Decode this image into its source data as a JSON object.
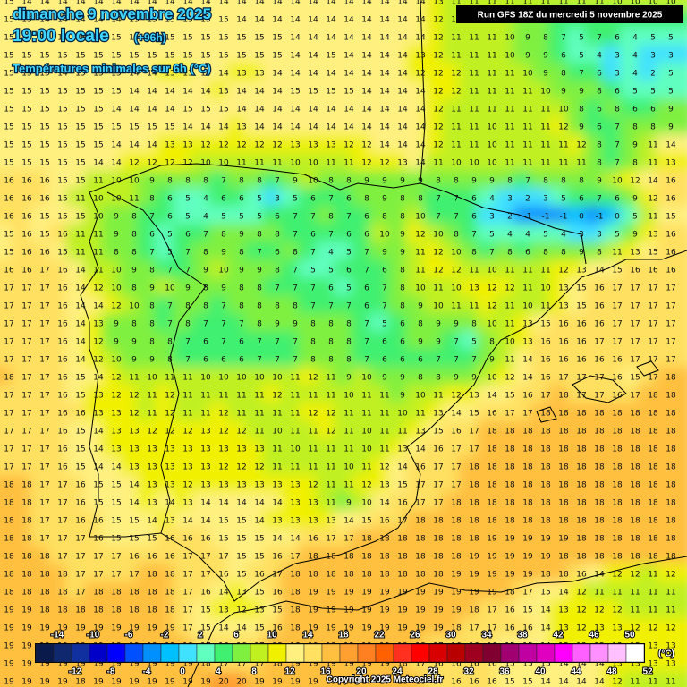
{
  "header": {
    "title": "dimanche 9 novembre 2025",
    "time": "19:00 locale",
    "lead": "(+96h)",
    "subtitle": "Températures minimales sur 6h (°C)",
    "run": "Run GFS 18Z du mercredi 5 novembre 2025"
  },
  "grid": {
    "rows": [
      [
        15,
        14,
        14,
        14,
        14,
        14,
        14,
        14,
        14,
        14,
        14,
        14,
        14,
        14,
        14,
        14,
        14,
        14,
        14,
        14,
        14,
        14,
        14,
        14,
        13,
        11,
        11,
        11,
        11,
        11,
        11,
        11,
        11,
        11,
        10,
        10,
        10,
        10
      ],
      [
        15,
        15,
        14,
        14,
        14,
        14,
        14,
        15,
        15,
        15,
        15,
        15,
        15,
        14,
        14,
        14,
        14,
        14,
        14,
        14,
        14,
        14,
        14,
        14,
        12,
        11,
        11,
        11,
        10,
        9,
        8,
        7,
        6,
        7,
        6,
        6,
        6,
        6
      ],
      [
        15,
        15,
        14,
        15,
        15,
        15,
        15,
        15,
        15,
        15,
        15,
        15,
        15,
        15,
        15,
        15,
        14,
        14,
        14,
        14,
        14,
        14,
        14,
        14,
        12,
        11,
        11,
        11,
        10,
        9,
        8,
        7,
        5,
        7,
        6,
        4,
        5,
        5
      ],
      [
        15,
        15,
        15,
        15,
        15,
        15,
        15,
        15,
        15,
        15,
        15,
        15,
        15,
        15,
        15,
        15,
        14,
        14,
        15,
        14,
        14,
        14,
        14,
        13,
        12,
        11,
        11,
        11,
        10,
        9,
        9,
        6,
        5,
        4,
        3,
        4,
        3,
        3
      ],
      [
        15,
        15,
        15,
        14,
        15,
        15,
        15,
        14,
        14,
        13,
        13,
        14,
        14,
        13,
        13,
        14,
        14,
        14,
        14,
        14,
        14,
        14,
        14,
        12,
        12,
        12,
        11,
        11,
        11,
        10,
        9,
        8,
        7,
        6,
        3,
        4,
        2,
        5
      ],
      [
        15,
        15,
        15,
        15,
        15,
        15,
        15,
        14,
        14,
        14,
        14,
        14,
        13,
        14,
        14,
        14,
        15,
        15,
        15,
        15,
        14,
        14,
        14,
        14,
        12,
        12,
        11,
        11,
        11,
        11,
        10,
        9,
        9,
        8,
        6,
        5,
        5,
        5
      ],
      [
        15,
        15,
        15,
        15,
        15,
        15,
        14,
        14,
        14,
        14,
        15,
        15,
        15,
        14,
        14,
        14,
        14,
        14,
        14,
        14,
        14,
        14,
        14,
        14,
        12,
        11,
        11,
        11,
        11,
        11,
        11,
        10,
        8,
        6,
        8,
        6,
        6,
        9
      ],
      [
        15,
        15,
        15,
        15,
        15,
        15,
        15,
        15,
        15,
        15,
        14,
        14,
        14,
        13,
        14,
        14,
        14,
        14,
        14,
        14,
        14,
        14,
        14,
        14,
        12,
        11,
        11,
        10,
        11,
        11,
        11,
        12,
        9,
        6,
        7,
        8,
        8,
        9
      ],
      [
        15,
        15,
        15,
        15,
        15,
        15,
        14,
        14,
        14,
        13,
        13,
        12,
        12,
        12,
        12,
        12,
        13,
        13,
        13,
        12,
        12,
        14,
        14,
        14,
        12,
        11,
        11,
        10,
        11,
        11,
        11,
        11,
        12,
        8,
        7,
        9,
        11,
        14
      ],
      [
        15,
        15,
        15,
        15,
        15,
        14,
        14,
        12,
        12,
        12,
        12,
        10,
        10,
        11,
        11,
        11,
        10,
        10,
        11,
        11,
        12,
        12,
        13,
        14,
        11,
        10,
        10,
        10,
        11,
        11,
        11,
        11,
        11,
        8,
        7,
        8,
        11,
        13
      ],
      [
        16,
        16,
        16,
        15,
        15,
        11,
        10,
        10,
        9,
        8,
        8,
        8,
        7,
        8,
        8,
        7,
        9,
        10,
        8,
        8,
        9,
        9,
        9,
        9,
        8,
        8,
        9,
        9,
        8,
        7,
        8,
        8,
        8,
        9,
        10,
        12,
        14,
        16
      ],
      [
        16,
        16,
        16,
        15,
        11,
        10,
        10,
        11,
        8,
        6,
        5,
        4,
        6,
        6,
        5,
        3,
        5,
        6,
        7,
        6,
        8,
        9,
        8,
        8,
        7,
        7,
        6,
        4,
        3,
        2,
        3,
        5,
        6,
        7,
        6,
        9,
        12,
        16
      ],
      [
        16,
        16,
        15,
        15,
        15,
        10,
        9,
        8,
        7,
        6,
        5,
        4,
        5,
        5,
        5,
        6,
        7,
        7,
        8,
        7,
        6,
        8,
        8,
        10,
        7,
        7,
        6,
        3,
        2,
        -1,
        -1,
        -1,
        0,
        -1,
        0,
        5,
        11,
        15
      ],
      [
        15,
        16,
        15,
        16,
        11,
        11,
        9,
        8,
        6,
        5,
        6,
        7,
        8,
        9,
        8,
        8,
        7,
        6,
        7,
        6,
        6,
        10,
        9,
        12,
        10,
        8,
        7,
        5,
        4,
        4,
        5,
        4,
        3,
        3,
        5,
        9,
        13,
        16
      ],
      [
        15,
        16,
        16,
        15,
        11,
        11,
        8,
        8,
        7,
        5,
        7,
        8,
        9,
        8,
        7,
        6,
        8,
        7,
        4,
        5,
        7,
        9,
        9,
        11,
        12,
        10,
        8,
        7,
        8,
        6,
        8,
        8,
        9,
        8,
        11,
        13,
        15,
        16
      ],
      [
        16,
        16,
        17,
        16,
        14,
        11,
        10,
        9,
        8,
        7,
        7,
        9,
        10,
        9,
        9,
        8,
        7,
        5,
        5,
        6,
        7,
        6,
        8,
        11,
        12,
        12,
        11,
        10,
        11,
        11,
        11,
        12,
        13,
        14,
        15,
        16,
        16,
        16
      ],
      [
        17,
        17,
        17,
        16,
        14,
        12,
        10,
        8,
        9,
        10,
        9,
        8,
        9,
        8,
        8,
        7,
        7,
        7,
        6,
        5,
        6,
        7,
        8,
        10,
        11,
        10,
        13,
        12,
        12,
        11,
        10,
        13,
        15,
        16,
        17,
        17,
        17,
        17
      ],
      [
        17,
        17,
        17,
        16,
        14,
        14,
        12,
        10,
        8,
        7,
        8,
        8,
        7,
        8,
        8,
        8,
        8,
        7,
        7,
        7,
        6,
        7,
        8,
        9,
        10,
        11,
        11,
        12,
        11,
        10,
        11,
        13,
        15,
        16,
        17,
        17,
        17,
        17
      ],
      [
        17,
        17,
        17,
        16,
        14,
        13,
        9,
        8,
        8,
        7,
        8,
        7,
        7,
        7,
        8,
        9,
        9,
        8,
        8,
        8,
        7,
        5,
        6,
        8,
        9,
        9,
        8,
        10,
        11,
        13,
        15,
        16,
        16,
        16,
        17,
        17,
        17,
        17
      ],
      [
        17,
        17,
        17,
        16,
        14,
        12,
        9,
        9,
        8,
        8,
        7,
        6,
        7,
        6,
        7,
        7,
        7,
        8,
        8,
        8,
        7,
        6,
        6,
        9,
        9,
        7,
        5,
        8,
        10,
        13,
        16,
        16,
        16,
        17,
        17,
        17,
        17,
        17
      ],
      [
        17,
        17,
        17,
        16,
        14,
        12,
        10,
        9,
        9,
        8,
        7,
        6,
        6,
        6,
        7,
        7,
        7,
        8,
        8,
        8,
        7,
        6,
        6,
        6,
        7,
        7,
        7,
        9,
        11,
        14,
        16,
        16,
        16,
        16,
        16,
        17,
        17,
        17
      ],
      [
        18,
        17,
        17,
        16,
        15,
        14,
        12,
        11,
        10,
        11,
        11,
        10,
        10,
        10,
        10,
        10,
        11,
        12,
        11,
        9,
        10,
        9,
        9,
        8,
        8,
        9,
        9,
        10,
        12,
        14,
        16,
        17,
        17,
        17,
        16,
        15,
        17,
        18
      ],
      [
        17,
        17,
        17,
        16,
        15,
        13,
        12,
        12,
        11,
        12,
        11,
        11,
        11,
        11,
        11,
        12,
        11,
        11,
        11,
        10,
        11,
        11,
        9,
        10,
        11,
        12,
        13,
        14,
        15,
        16,
        17,
        18,
        17,
        17,
        16,
        17,
        18,
        18
      ],
      [
        17,
        17,
        17,
        16,
        16,
        13,
        13,
        12,
        11,
        12,
        11,
        11,
        12,
        11,
        11,
        11,
        11,
        12,
        12,
        11,
        11,
        11,
        10,
        11,
        13,
        14,
        15,
        16,
        17,
        17,
        18,
        18,
        18,
        18,
        18,
        18,
        18,
        18
      ],
      [
        17,
        17,
        17,
        16,
        15,
        14,
        13,
        13,
        12,
        12,
        12,
        13,
        12,
        12,
        11,
        10,
        11,
        11,
        12,
        11,
        10,
        11,
        11,
        13,
        15,
        16,
        17,
        18,
        18,
        18,
        18,
        18,
        18,
        18,
        18,
        18,
        18,
        18
      ],
      [
        17,
        17,
        17,
        16,
        15,
        14,
        13,
        13,
        13,
        13,
        13,
        13,
        13,
        13,
        13,
        11,
        10,
        11,
        11,
        11,
        10,
        11,
        13,
        14,
        16,
        17,
        17,
        18,
        18,
        18,
        18,
        18,
        18,
        18,
        18,
        18,
        18,
        18
      ],
      [
        17,
        17,
        17,
        16,
        15,
        14,
        14,
        13,
        13,
        13,
        13,
        13,
        12,
        12,
        12,
        11,
        11,
        11,
        11,
        10,
        11,
        12,
        14,
        16,
        17,
        17,
        18,
        18,
        18,
        18,
        18,
        18,
        18,
        18,
        18,
        18,
        18,
        18
      ],
      [
        18,
        18,
        17,
        17,
        16,
        15,
        15,
        14,
        13,
        13,
        12,
        13,
        13,
        13,
        13,
        13,
        13,
        12,
        11,
        11,
        12,
        13,
        15,
        17,
        17,
        17,
        18,
        18,
        18,
        18,
        18,
        18,
        18,
        18,
        18,
        18,
        18,
        18
      ],
      [
        18,
        18,
        17,
        17,
        16,
        15,
        15,
        14,
        13,
        14,
        13,
        14,
        14,
        14,
        14,
        14,
        13,
        13,
        11,
        9,
        10,
        14,
        16,
        17,
        17,
        18,
        18,
        18,
        18,
        18,
        18,
        18,
        18,
        18,
        18,
        18,
        18,
        18
      ],
      [
        18,
        18,
        17,
        17,
        16,
        16,
        15,
        15,
        14,
        13,
        14,
        14,
        15,
        15,
        14,
        13,
        13,
        13,
        13,
        14,
        15,
        16,
        17,
        18,
        18,
        18,
        18,
        18,
        18,
        18,
        18,
        18,
        18,
        18,
        18,
        18,
        18,
        18
      ],
      [
        18,
        18,
        17,
        17,
        17,
        16,
        15,
        15,
        15,
        16,
        16,
        16,
        15,
        15,
        15,
        14,
        14,
        16,
        17,
        17,
        18,
        18,
        18,
        18,
        18,
        18,
        18,
        19,
        19,
        19,
        19,
        19,
        18,
        18,
        18,
        18,
        18,
        18
      ],
      [
        18,
        18,
        18,
        17,
        17,
        17,
        17,
        16,
        16,
        16,
        17,
        17,
        17,
        15,
        15,
        16,
        17,
        18,
        18,
        18,
        18,
        18,
        18,
        18,
        18,
        18,
        19,
        19,
        19,
        19,
        19,
        18,
        18,
        18,
        18,
        18,
        18,
        18
      ],
      [
        18,
        18,
        18,
        18,
        17,
        17,
        17,
        17,
        18,
        18,
        17,
        17,
        16,
        15,
        16,
        17,
        18,
        18,
        18,
        18,
        18,
        18,
        18,
        18,
        18,
        19,
        19,
        19,
        19,
        19,
        18,
        18,
        16,
        14,
        12,
        12,
        11,
        12
      ],
      [
        18,
        18,
        18,
        18,
        17,
        18,
        18,
        18,
        18,
        18,
        17,
        16,
        14,
        13,
        15,
        16,
        18,
        19,
        19,
        19,
        19,
        19,
        19,
        19,
        19,
        19,
        19,
        19,
        18,
        17,
        15,
        14,
        12,
        11,
        11,
        11,
        11,
        11
      ],
      [
        19,
        19,
        18,
        18,
        18,
        18,
        18,
        18,
        18,
        18,
        17,
        15,
        13,
        12,
        13,
        15,
        18,
        19,
        19,
        19,
        19,
        19,
        19,
        19,
        19,
        19,
        18,
        17,
        16,
        15,
        14,
        13,
        12,
        12,
        12,
        11,
        11,
        11
      ],
      [
        19,
        19,
        19,
        19,
        19,
        19,
        19,
        19,
        19,
        19,
        17,
        15,
        14,
        14,
        15,
        16,
        18,
        19,
        19,
        19,
        19,
        19,
        19,
        19,
        19,
        18,
        17,
        17,
        16,
        16,
        14,
        13,
        12,
        13,
        13,
        12,
        12,
        12
      ],
      [
        19,
        19,
        19,
        19,
        19,
        19,
        19,
        19,
        19,
        19,
        18,
        17,
        16,
        16,
        17,
        18,
        18,
        19,
        19,
        19,
        19,
        19,
        19,
        18,
        17,
        16,
        16,
        16,
        15,
        15,
        14,
        13,
        13,
        13,
        13,
        13,
        13,
        13
      ],
      [
        19,
        19,
        19,
        19,
        19,
        19,
        19,
        19,
        19,
        19,
        19,
        18,
        17,
        17,
        17,
        18,
        19,
        19,
        19,
        19,
        19,
        19,
        18,
        17,
        16,
        16,
        16,
        16,
        15,
        15,
        15,
        14,
        14,
        14,
        13,
        13,
        13,
        13
      ],
      [
        19,
        19,
        19,
        19,
        18,
        19,
        19,
        19,
        19,
        19,
        19,
        19,
        20,
        20,
        19,
        19,
        19,
        19,
        19,
        19,
        19,
        19,
        18,
        18,
        17,
        16,
        16,
        16,
        15,
        15,
        14,
        14,
        14,
        14,
        12,
        11,
        11,
        11
      ]
    ]
  },
  "colorbar": {
    "values": [
      -14,
      -12,
      -10,
      -8,
      -6,
      -4,
      -2,
      0,
      2,
      4,
      6,
      8,
      10,
      12,
      14,
      16,
      18,
      20,
      22,
      24,
      26,
      28,
      30,
      32,
      34,
      36,
      38,
      40,
      42,
      44,
      46,
      48,
      50,
      52
    ],
    "colors": [
      "#0a1a4a",
      "#10286e",
      "#1030a0",
      "#0000c8",
      "#0000ff",
      "#0050ff",
      "#0090ff",
      "#00c0ff",
      "#40e0ff",
      "#60ffc0",
      "#40f070",
      "#80f040",
      "#c0f020",
      "#f0f000",
      "#fff080",
      "#ffe060",
      "#ffc040",
      "#ffa030",
      "#ff8020",
      "#ff6000",
      "#ff3020",
      "#ff0000",
      "#d80000",
      "#b80000",
      "#a00020",
      "#800030",
      "#a00070",
      "#c000a0",
      "#e000c0",
      "#ff00ff",
      "#ff60ff",
      "#ff90ff",
      "#ffc0ff",
      "#ffffff"
    ],
    "unit": "(°C)"
  },
  "footer": {
    "copyright": "Copyright 2025 Meteociel.fr"
  }
}
